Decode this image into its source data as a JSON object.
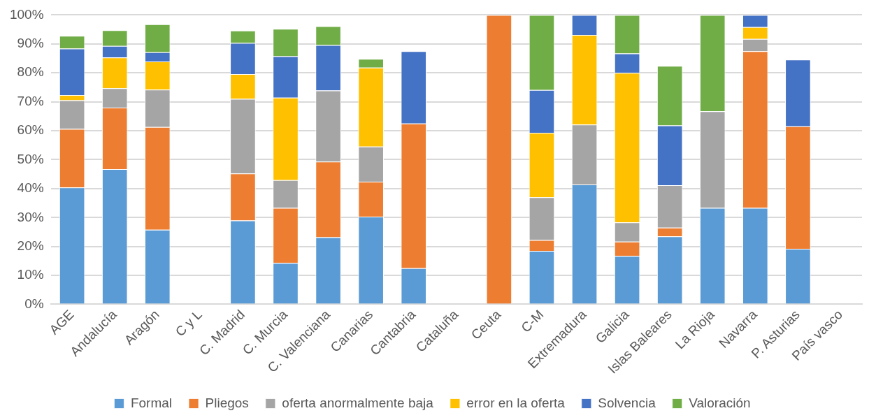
{
  "chart_data": {
    "type": "bar",
    "stacked": true,
    "grid": "y",
    "legend": "bottom",
    "categories": [
      "AGE",
      "Andalucía",
      "Aragón",
      "C y L",
      "C. Madrid",
      "C. Murcia",
      "C. Valenciana",
      "Canarias",
      "Cantabria",
      "Cataluña",
      "Ceuta",
      "C-M",
      "Extremadura",
      "Galicia",
      "Islas Baleares",
      "La Rioja",
      "Navarra",
      "P. Asturias",
      "País vasco"
    ],
    "ylim": [
      0,
      100
    ],
    "yticks": [
      {
        "value": 0,
        "label": "0%"
      },
      {
        "value": 10,
        "label": "10%"
      },
      {
        "value": 20,
        "label": "20%"
      },
      {
        "value": 30,
        "label": "30%"
      },
      {
        "value": 40,
        "label": "40%"
      },
      {
        "value": 50,
        "label": "50%"
      },
      {
        "value": 60,
        "label": "60%"
      },
      {
        "value": 70,
        "label": "70%"
      },
      {
        "value": 80,
        "label": "80%"
      },
      {
        "value": 90,
        "label": "90%"
      },
      {
        "value": 100,
        "label": "100%"
      }
    ],
    "series": [
      {
        "name": "Formal",
        "color": "#5b9bd5",
        "values": [
          40.4,
          46.7,
          25.8,
          null,
          29.0,
          14.3,
          23.2,
          30.3,
          12.5,
          null,
          0,
          18.5,
          41.4,
          16.7,
          23.5,
          33.3,
          33.3,
          19.2,
          null
        ]
      },
      {
        "name": "Pliegos",
        "color": "#ed7d31",
        "values": [
          20.2,
          21.3,
          35.5,
          null,
          16.2,
          19.0,
          26.1,
          12.1,
          50.0,
          null,
          100,
          3.7,
          0,
          5.0,
          3.0,
          0,
          54.2,
          42.3,
          null
        ]
      },
      {
        "name": "oferta anormalmente baja",
        "color": "#a5a5a5",
        "values": [
          9.9,
          6.7,
          12.9,
          null,
          25.8,
          9.6,
          24.6,
          12.1,
          0,
          null,
          0,
          14.8,
          20.7,
          6.6,
          14.7,
          33.4,
          4.2,
          0,
          null
        ]
      },
      {
        "name": "error en la oferta",
        "color": "#ffc000",
        "values": [
          1.8,
          10.6,
          9.7,
          null,
          8.6,
          28.5,
          0,
          27.3,
          0,
          null,
          0,
          22.3,
          31.0,
          51.7,
          0,
          0,
          4.1,
          0,
          null
        ]
      },
      {
        "name": "Solvencia",
        "color": "#4472c4",
        "values": [
          16.1,
          4.0,
          3.2,
          null,
          10.7,
          14.3,
          15.7,
          0,
          25.0,
          null,
          0,
          14.8,
          6.9,
          6.7,
          20.6,
          0,
          4.2,
          23.1,
          null
        ]
      },
      {
        "name": "Valoración",
        "color": "#70ad47",
        "values": [
          4.4,
          5.4,
          9.7,
          null,
          4.3,
          9.5,
          6.5,
          3.0,
          0,
          null,
          0,
          25.9,
          0,
          13.3,
          20.6,
          33.3,
          0,
          0,
          null
        ]
      }
    ]
  }
}
